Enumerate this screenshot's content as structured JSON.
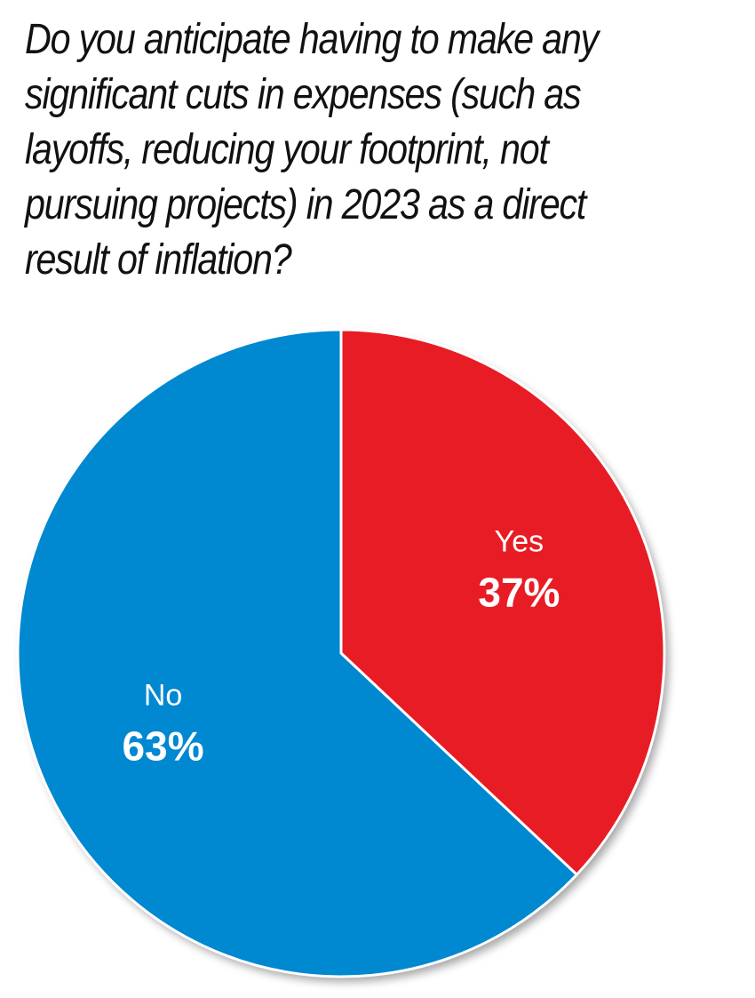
{
  "title_lines": [
    "Do you anticipate having to make any",
    "significant cuts in expenses (such as",
    "layoffs, reducing your footprint, not",
    "pursuing projects) in 2023 as a direct",
    "result of inflation?"
  ],
  "chart_data": {
    "type": "pie",
    "title": "Do you anticipate having to make any significant cuts in expenses (such as layoffs, reducing your footprint, not pursuing projects) in 2023 as a direct result of inflation?",
    "categories": [
      "Yes",
      "No"
    ],
    "values": [
      37,
      63
    ],
    "value_labels": [
      "37%",
      "63%"
    ],
    "colors": [
      "#e81c24",
      "#0088d1"
    ],
    "start_angle": "12 o'clock",
    "direction": "clockwise",
    "legend": "none (labels on slices)"
  }
}
